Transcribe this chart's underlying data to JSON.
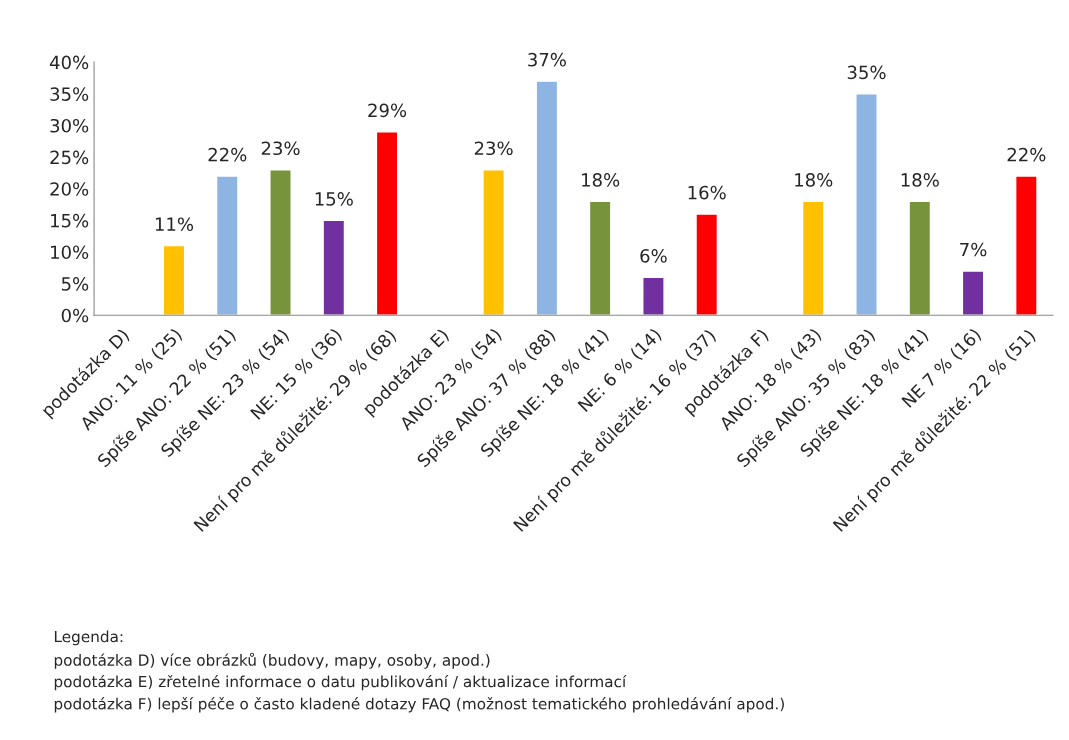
{
  "chart_data": {
    "type": "bar",
    "categories": [
      "podotázka D)",
      "ANO: 11 % (25)",
      "Spíše ANO: 22 % (51)",
      "Spíše NE: 23 % (54)",
      "NE: 15 % (36)",
      "Není pro mě důležité: 29 % (68)",
      "podotázka E)",
      "ANO: 23 % (54)",
      "Spíše ANO: 37 % (88)",
      "Spíše NE: 18 % (41)",
      "NE: 6 % (14)",
      "Není pro mě důležité: 16 % (37)",
      "podotázka F)",
      "ANO: 18 % (43)",
      "Spíše ANO: 35 % (83)",
      "Spíše NE: 18 % (41)",
      "NE 7 % (16)",
      "Není pro mě důležité: 22 % (51)"
    ],
    "values": [
      null,
      11,
      22,
      23,
      15,
      29,
      null,
      23,
      37,
      18,
      6,
      16,
      null,
      18,
      35,
      18,
      7,
      22
    ],
    "colors": [
      "#ffffff",
      "#ffc000",
      "#8db4e2",
      "#77933c",
      "#7030a0",
      "#ff0000",
      "#ffffff",
      "#ffc000",
      "#8db4e2",
      "#77933c",
      "#7030a0",
      "#ff0000",
      "#ffffff",
      "#ffc000",
      "#8db4e2",
      "#77933c",
      "#7030a0",
      "#ff0000"
    ],
    "value_labels": [
      null,
      "11%",
      "22%",
      "23%",
      "15%",
      "29%",
      null,
      "23%",
      "37%",
      "18%",
      "6%",
      "16%",
      null,
      "18%",
      "35%",
      "18%",
      "7%",
      "22%"
    ],
    "ylim": [
      0,
      40
    ],
    "yticks": [
      {
        "value": 0,
        "label": "0%"
      },
      {
        "value": 5,
        "label": "5%"
      },
      {
        "value": 10,
        "label": "10%"
      },
      {
        "value": 15,
        "label": "15%"
      },
      {
        "value": 20,
        "label": "20%"
      },
      {
        "value": 25,
        "label": "25%"
      },
      {
        "value": 30,
        "label": "30%"
      },
      {
        "value": 35,
        "label": "35%"
      },
      {
        "value": 40,
        "label": "40%"
      }
    ],
    "grid": false,
    "annotations": [
      "Legenda:",
      "podotázka D) více obrázků (budovy, mapy, osoby, apod.)",
      "podotázka E) zřetelné informace o datu publikování / aktualizace informací",
      "podotázka F) lepší péče o často kladené dotazy FAQ (možnost tematického prohledávání apod.)"
    ]
  }
}
